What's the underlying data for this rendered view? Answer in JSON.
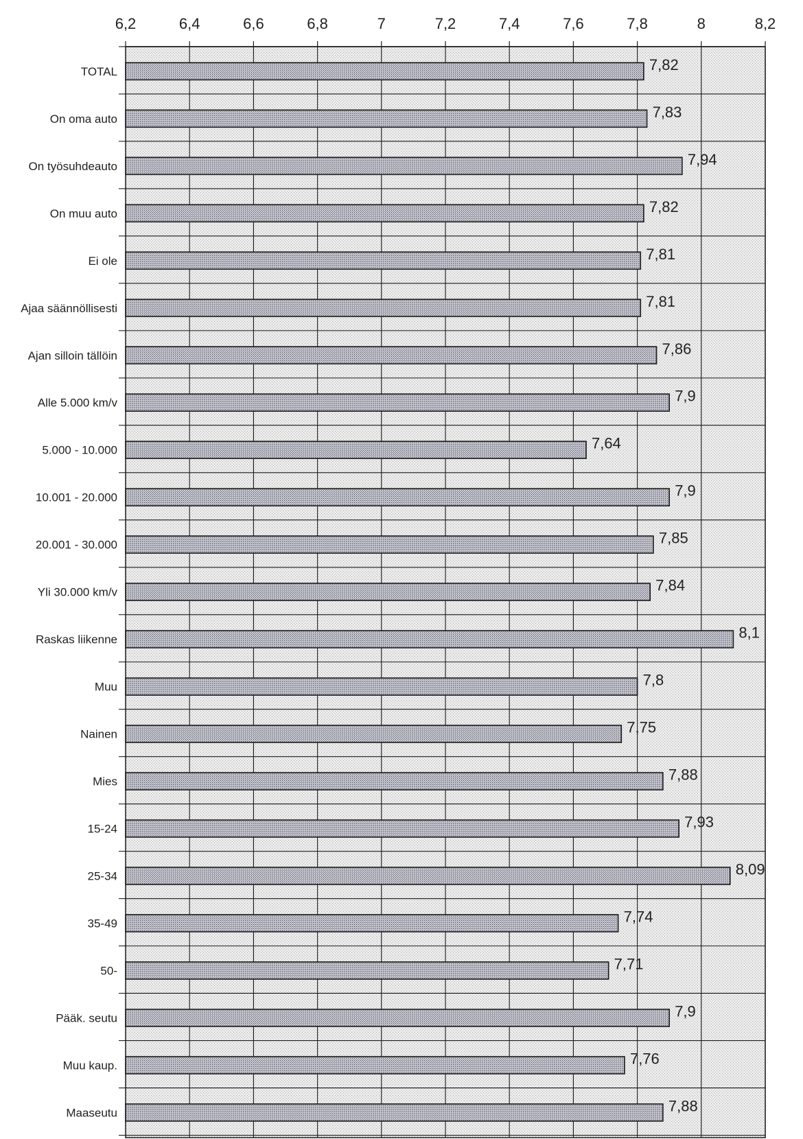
{
  "chart_data": {
    "type": "bar",
    "orientation": "horizontal",
    "title": "",
    "xlabel": "",
    "ylabel": "",
    "xlim": [
      6.2,
      8.2
    ],
    "x_ticks": [
      6.2,
      6.4,
      6.6,
      6.8,
      7.0,
      7.2,
      7.4,
      7.6,
      7.8,
      8.0,
      8.2
    ],
    "x_tick_labels": [
      "6,2",
      "6,4",
      "6,6",
      "6,8",
      "7",
      "7,2",
      "7,4",
      "7,6",
      "7,8",
      "8",
      "8,2"
    ],
    "x_axis_position": "top",
    "grid": true,
    "legend": "none",
    "categories": [
      "TOTAL",
      "On oma auto",
      "On työsuhdeauto",
      "On muu auto",
      "Ei ole",
      "Ajaa säännöllisesti",
      "Ajan silloin tällöin",
      "Alle 5.000 km/v",
      "5.000 - 10.000",
      "10.001 - 20.000",
      "20.001 - 30.000",
      "Yli 30.000 km/v",
      "Raskas liikenne",
      "Muu",
      "Nainen",
      "Mies",
      "15-24",
      "25-34",
      "35-49",
      "50-",
      "Pääk. seutu",
      "Muu kaup.",
      "Maaseutu"
    ],
    "values": [
      7.82,
      7.83,
      7.94,
      7.82,
      7.81,
      7.81,
      7.86,
      7.9,
      7.64,
      7.9,
      7.85,
      7.84,
      8.1,
      7.8,
      7.75,
      7.88,
      7.93,
      8.09,
      7.74,
      7.71,
      7.9,
      7.76,
      7.88
    ],
    "value_labels": [
      "7,82",
      "7,83",
      "7,94",
      "7,82",
      "7,81",
      "7,81",
      "7,86",
      "7,9",
      "7,64",
      "7,9",
      "7,85",
      "7,84",
      "8,1",
      "7,8",
      "7,75",
      "7,88",
      "7,93",
      "8,09",
      "7,74",
      "7,71",
      "7,9",
      "7,76",
      "7,88"
    ]
  },
  "colors": {
    "plot_background": "#e6e6e6",
    "bar_fill": "#c2c2cc",
    "bar_stroke": "#1a1a1a",
    "grid": "#1a1a1a",
    "text": "#222222"
  }
}
